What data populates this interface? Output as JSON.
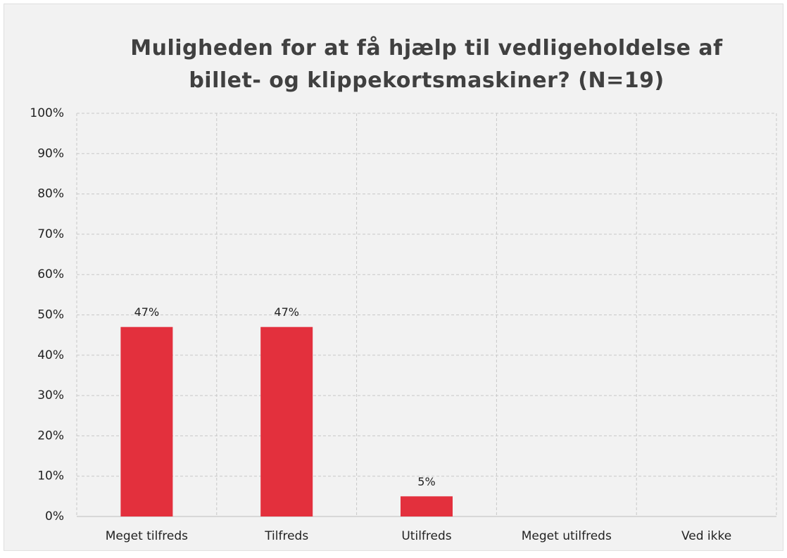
{
  "chart_data": {
    "type": "bar",
    "title": "Muligheden for at få hjælp til vedligeholdelse af billet- og klippekortsmaskiner? (N=19)",
    "categories": [
      "Meget tilfreds",
      "Tilfreds",
      "Utilfreds",
      "Meget utilfreds",
      "Ved ikke"
    ],
    "values": [
      47,
      47,
      5,
      0,
      0
    ],
    "value_labels": [
      "47%",
      "47%",
      "5%",
      null,
      null
    ],
    "color": "#e3303d",
    "ylim": [
      0,
      100
    ],
    "yticks": [
      {
        "value": 0,
        "label": "0%"
      },
      {
        "value": 10,
        "label": "10%"
      },
      {
        "value": 20,
        "label": "20%"
      },
      {
        "value": 30,
        "label": "30%"
      },
      {
        "value": 40,
        "label": "40%"
      },
      {
        "value": 50,
        "label": "50%"
      },
      {
        "value": 60,
        "label": "60%"
      },
      {
        "value": 70,
        "label": "70%"
      },
      {
        "value": 80,
        "label": "80%"
      },
      {
        "value": 90,
        "label": "90%"
      },
      {
        "value": 100,
        "label": "100%"
      }
    ],
    "grid": true
  }
}
